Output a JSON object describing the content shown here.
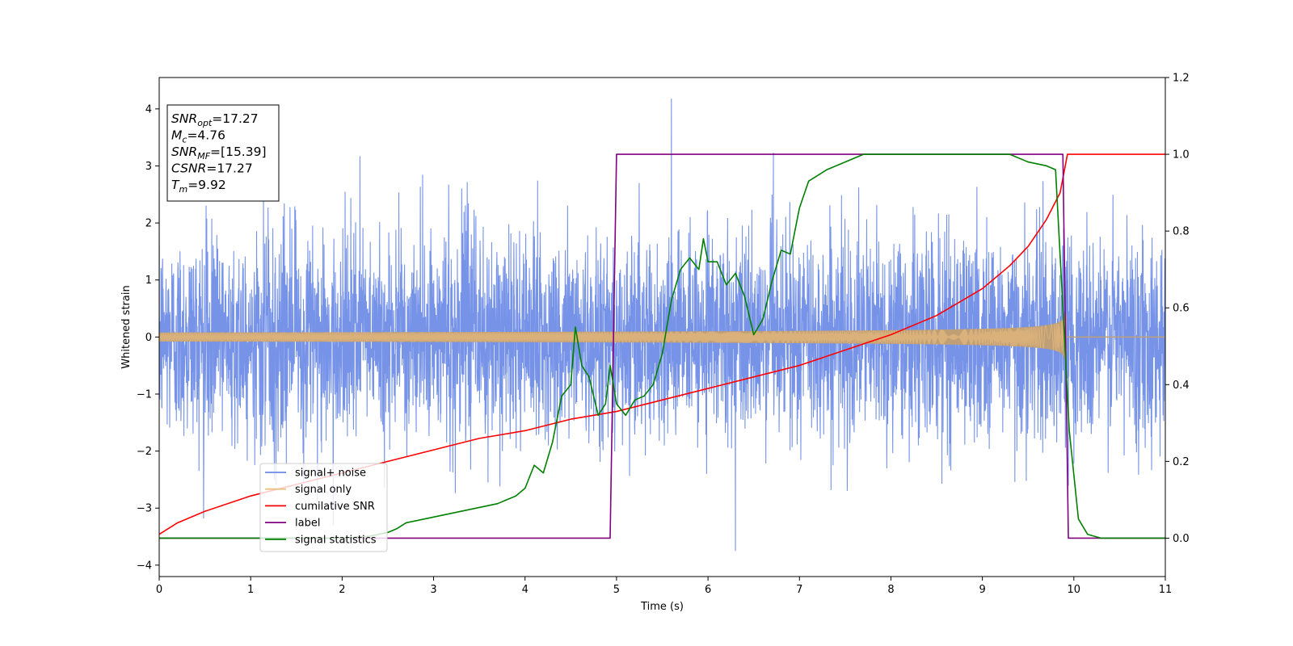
{
  "chart_data": {
    "type": "line",
    "xlabel": "Time (s)",
    "ylabel": "Whitened strain",
    "xlim": [
      0,
      11
    ],
    "ylim_left": [
      -4.2,
      4.55
    ],
    "ylim_right": [
      -0.1,
      1.2
    ],
    "x_ticks": [
      0,
      1,
      2,
      3,
      4,
      5,
      6,
      7,
      8,
      9,
      10,
      11
    ],
    "y_ticks_left": [
      -4,
      -3,
      -2,
      -1,
      0,
      1,
      2,
      3,
      4
    ],
    "y_ticks_right": [
      0.0,
      0.2,
      0.4,
      0.6,
      0.8,
      1.0,
      1.2
    ],
    "info_box": [
      {
        "base": "SNR",
        "sub": "opt",
        "text": "=17.27"
      },
      {
        "base": "M",
        "sub": "c",
        "text": "=4.76"
      },
      {
        "base": "SNR",
        "sub": "MF",
        "text": "=[15.39]"
      },
      {
        "base": "CSNR",
        "sub": "",
        "text": "=17.27"
      },
      {
        "base": "T",
        "sub": "m",
        "text": "=9.92"
      }
    ],
    "legend_position": "lower-left",
    "series": [
      {
        "name": "signal+ noise",
        "color": "#6a8ae6",
        "axis": "left",
        "kind": "noise",
        "noise_sigma": 0.9,
        "noise_peak": 4.18,
        "noise_peak_x": 5.6,
        "noise_trough": -3.75,
        "noise_trough_x": 6.3
      },
      {
        "name": "signal only",
        "color": "#f0c080",
        "axis": "left",
        "kind": "chirp",
        "start_amplitude": 0.08,
        "peak_amplitude": 0.95,
        "merger_time": 9.92
      },
      {
        "name": "cumilative SNR",
        "color": "#ff0000",
        "axis": "right",
        "x": [
          0,
          0.2,
          0.5,
          1,
          1.5,
          2,
          2.5,
          3,
          3.5,
          4,
          4.5,
          5,
          5.5,
          6,
          6.5,
          7,
          7.5,
          8,
          8.5,
          9,
          9.3,
          9.5,
          9.7,
          9.85,
          9.93,
          11
        ],
        "y": [
          0.01,
          0.04,
          0.07,
          0.11,
          0.14,
          0.17,
          0.2,
          0.23,
          0.26,
          0.28,
          0.31,
          0.33,
          0.36,
          0.39,
          0.42,
          0.45,
          0.49,
          0.53,
          0.58,
          0.65,
          0.71,
          0.76,
          0.83,
          0.9,
          1.0,
          1.0
        ]
      },
      {
        "name": "label",
        "color": "#800080",
        "axis": "right",
        "x": [
          0,
          4.93,
          5.0,
          9.88,
          9.94,
          11
        ],
        "y": [
          0,
          0,
          1,
          1,
          0,
          0
        ]
      },
      {
        "name": "signal statistics",
        "color": "#008000",
        "axis": "right",
        "x": [
          0,
          2.0,
          2.3,
          2.5,
          2.6,
          2.7,
          2.8,
          2.9,
          3.0,
          3.1,
          3.2,
          3.3,
          3.4,
          3.5,
          3.6,
          3.7,
          3.8,
          3.9,
          4.0,
          4.1,
          4.2,
          4.3,
          4.4,
          4.5,
          4.55,
          4.62,
          4.7,
          4.8,
          4.88,
          4.93,
          5.0,
          5.1,
          5.2,
          5.3,
          5.4,
          5.5,
          5.6,
          5.7,
          5.8,
          5.9,
          5.95,
          6.0,
          6.1,
          6.2,
          6.3,
          6.4,
          6.5,
          6.6,
          6.7,
          6.8,
          6.9,
          7.0,
          7.1,
          7.3,
          7.5,
          7.7,
          8.0,
          8.5,
          9.0,
          9.3,
          9.5,
          9.7,
          9.8,
          9.88,
          9.95,
          10.05,
          10.15,
          10.3,
          11
        ],
        "y": [
          0.0,
          0.0,
          0.005,
          0.015,
          0.025,
          0.04,
          0.045,
          0.05,
          0.055,
          0.06,
          0.065,
          0.07,
          0.075,
          0.08,
          0.085,
          0.09,
          0.1,
          0.11,
          0.13,
          0.19,
          0.17,
          0.25,
          0.37,
          0.4,
          0.55,
          0.45,
          0.42,
          0.32,
          0.35,
          0.45,
          0.35,
          0.32,
          0.36,
          0.37,
          0.4,
          0.48,
          0.62,
          0.7,
          0.73,
          0.7,
          0.78,
          0.72,
          0.72,
          0.66,
          0.69,
          0.63,
          0.53,
          0.57,
          0.67,
          0.75,
          0.74,
          0.86,
          0.93,
          0.96,
          0.98,
          1.0,
          1.0,
          1.0,
          1.0,
          1.0,
          0.98,
          0.97,
          0.96,
          0.6,
          0.28,
          0.05,
          0.01,
          0.0,
          0.0
        ]
      }
    ]
  }
}
